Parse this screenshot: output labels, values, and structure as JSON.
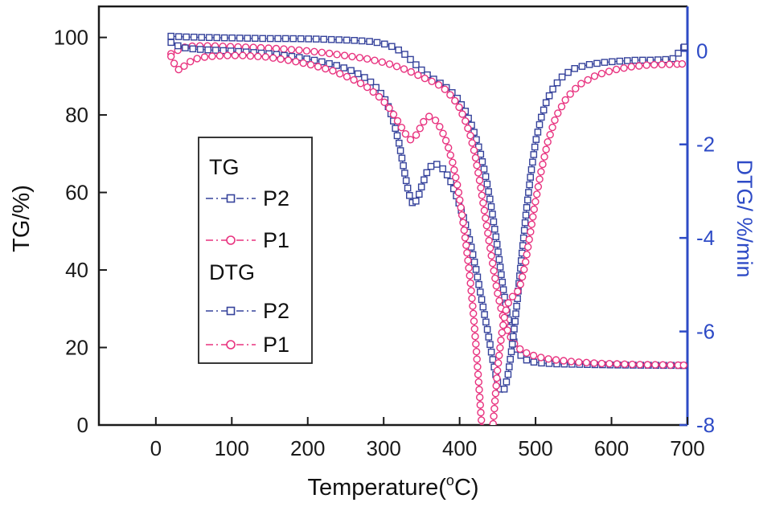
{
  "chart_data": {
    "type": "line",
    "title": "",
    "xlabel": {
      "pre": "Temperature(",
      "sup": "o",
      "post": "C)"
    },
    "ylabel_left": "TG/%)",
    "ylabel_right": "DTG/ %/min",
    "x_ticks": [
      0,
      100,
      200,
      300,
      400,
      500,
      600,
      700
    ],
    "y_left_ticks": [
      0,
      20,
      40,
      60,
      80,
      100
    ],
    "y_right_ticks": [
      0,
      -2,
      -4,
      -6,
      -8
    ],
    "xlim": [
      -75,
      700
    ],
    "ylim_left": [
      0,
      108
    ],
    "ylim_right": [
      -8,
      0.95
    ],
    "grid": false,
    "legend_position": "center-left",
    "colors": {
      "axis": "#1a1a1a",
      "right_axis": "#2e4bc6",
      "p2": "#35429b",
      "p1": "#e8327f"
    },
    "legend": {
      "tg_label": "TG",
      "dtg_label": "DTG",
      "p2_label": "P2",
      "p1_label": "P1"
    },
    "series": [
      {
        "id": "tg-p2",
        "name": "TG P2",
        "axis": "left",
        "color_key": "p2",
        "marker": "square",
        "x": [
          20,
          30,
          45,
          65,
          90,
          120,
          150,
          180,
          210,
          240,
          265,
          285,
          297,
          307,
          317,
          327,
          337,
          347,
          357,
          367,
          377,
          387,
          397,
          407,
          417,
          427,
          435,
          442,
          449,
          455,
          461,
          468,
          476,
          485,
          495,
          508,
          524,
          545,
          570,
          600,
          630,
          655,
          675,
          695
        ],
        "y": [
          100.3,
          100.2,
          100.1,
          100.0,
          99.9,
          99.8,
          99.7,
          99.7,
          99.6,
          99.4,
          99.2,
          98.9,
          98.5,
          98.0,
          97.1,
          95.8,
          94.0,
          92.1,
          90.4,
          89.1,
          87.9,
          86.4,
          84.3,
          81.2,
          76.8,
          70.5,
          63.5,
          56.0,
          47.0,
          38.5,
          30.5,
          23.5,
          19.0,
          17.0,
          16.3,
          16.0,
          15.8,
          15.7,
          15.6,
          15.5,
          15.45,
          15.4,
          15.38,
          15.35
        ]
      },
      {
        "id": "tg-p1",
        "name": "TG P1",
        "axis": "left",
        "color_key": "p1",
        "marker": "circle",
        "x": [
          20,
          26,
          33,
          42,
          55,
          75,
          100,
          130,
          160,
          190,
          220,
          250,
          275,
          295,
          310,
          325,
          340,
          352,
          362,
          372,
          382,
          392,
          400,
          408,
          414,
          420,
          426,
          432,
          438,
          444,
          450,
          457,
          464,
          472,
          481,
          491,
          503,
          518,
          536,
          558,
          585,
          615,
          645,
          668,
          685,
          695
        ],
        "y": [
          95.8,
          96.3,
          97.2,
          97.7,
          97.8,
          97.8,
          97.6,
          97.4,
          97.1,
          96.7,
          96.1,
          95.3,
          94.6,
          93.8,
          93.0,
          92.0,
          90.8,
          89.6,
          88.8,
          87.8,
          86.4,
          84.2,
          81.8,
          78.2,
          74.8,
          70.0,
          63.5,
          56.0,
          48.5,
          41.0,
          34.0,
          28.0,
          23.8,
          21.0,
          19.3,
          18.3,
          17.6,
          17.0,
          16.6,
          16.2,
          15.9,
          15.7,
          15.55,
          15.5,
          15.45,
          15.42
        ]
      },
      {
        "id": "dtg-p2",
        "name": "DTG P2",
        "axis": "right",
        "color_key": "p2",
        "marker": "square",
        "x": [
          20,
          27,
          36,
          50,
          70,
          95,
          125,
          155,
          185,
          215,
          240,
          262,
          280,
          294,
          304,
          312,
          320,
          327,
          333,
          339,
          345,
          351,
          358,
          366,
          374,
          382,
          390,
          398,
          406,
          414,
          422,
          430,
          437,
          443,
          448,
          452,
          456,
          460,
          464,
          468,
          473,
          478,
          483,
          488,
          494,
          500,
          507,
          515,
          525,
          537,
          551,
          568,
          588,
          610,
          632,
          650,
          665,
          680,
          696
        ],
        "y": [
          0.18,
          0.12,
          0.07,
          0.04,
          0.02,
          0.0,
          -0.03,
          -0.07,
          -0.13,
          -0.22,
          -0.32,
          -0.45,
          -0.62,
          -0.85,
          -1.1,
          -1.45,
          -1.95,
          -2.55,
          -3.05,
          -3.3,
          -3.15,
          -2.85,
          -2.55,
          -2.4,
          -2.45,
          -2.6,
          -2.85,
          -3.2,
          -3.6,
          -4.1,
          -4.7,
          -5.4,
          -6.0,
          -6.55,
          -6.95,
          -7.2,
          -7.3,
          -7.2,
          -6.9,
          -6.45,
          -5.8,
          -5.0,
          -4.2,
          -3.4,
          -2.6,
          -1.95,
          -1.45,
          -1.05,
          -0.75,
          -0.52,
          -0.38,
          -0.3,
          -0.25,
          -0.22,
          -0.2,
          -0.2,
          -0.19,
          -0.18,
          0.08
        ]
      },
      {
        "id": "dtg-p1",
        "name": "DTG P1",
        "axis": "right",
        "color_key": "p1",
        "marker": "circle",
        "x": [
          20,
          25,
          31,
          39,
          50,
          68,
          90,
          115,
          145,
          175,
          205,
          232,
          256,
          276,
          292,
          304,
          314,
          322,
          329,
          335,
          341,
          347,
          353,
          360,
          368,
          376,
          384,
          391,
          398,
          404,
          409,
          414,
          418,
          422,
          426,
          430,
          434,
          438,
          442,
          446,
          450,
          455,
          460,
          465,
          470,
          475,
          480,
          486,
          492,
          499,
          507,
          516,
          527,
          541,
          558,
          580,
          605,
          630,
          650,
          672,
          693
        ],
        "y": [
          -0.12,
          -0.3,
          -0.42,
          -0.3,
          -0.18,
          -0.12,
          -0.1,
          -0.1,
          -0.13,
          -0.2,
          -0.3,
          -0.42,
          -0.58,
          -0.75,
          -0.95,
          -1.15,
          -1.38,
          -1.6,
          -1.78,
          -1.9,
          -1.85,
          -1.68,
          -1.5,
          -1.4,
          -1.48,
          -1.68,
          -2.0,
          -2.4,
          -2.95,
          -3.6,
          -4.2,
          -4.9,
          -5.6,
          -6.4,
          -7.3,
          -8.2,
          -8.8,
          -8.9,
          -8.4,
          -7.6,
          -6.8,
          -6.1,
          -5.6,
          -5.35,
          -5.25,
          -5.2,
          -5.0,
          -4.6,
          -4.0,
          -3.3,
          -2.6,
          -1.95,
          -1.4,
          -1.0,
          -0.72,
          -0.52,
          -0.4,
          -0.33,
          -0.3,
          -0.29,
          -0.28
        ]
      }
    ]
  }
}
